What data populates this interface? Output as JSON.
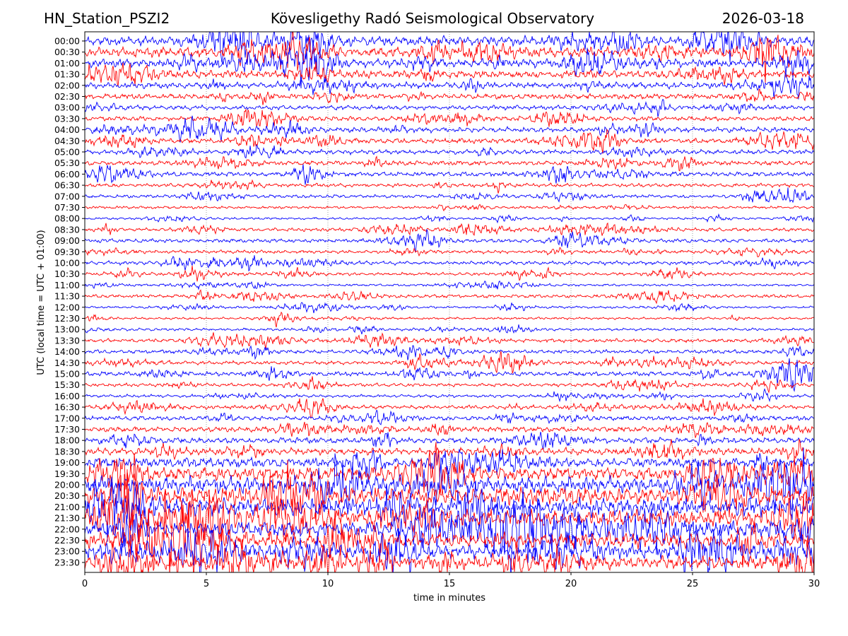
{
  "header": {
    "station": "HN_Station_PSZI2",
    "observatory": "Kövesligethy Radó Seismological Observatory",
    "date": "2026-03-18"
  },
  "chart_data": {
    "type": "line",
    "xlabel": "time in minutes",
    "ylabel": "UTC (local time = UTC + 01:00)",
    "xlim": [
      0,
      30
    ],
    "x_ticks": [
      "0",
      "5",
      "10",
      "15",
      "20",
      "25",
      "30"
    ],
    "grid": "vertical dotted lines at x = 5, 10, 15, 20, 25",
    "trace_colors": [
      "#0000ff",
      "#ff0000"
    ],
    "row_labels": [
      "00:00",
      "00:30",
      "01:00",
      "01:30",
      "02:00",
      "02:30",
      "03:00",
      "03:30",
      "04:00",
      "04:30",
      "05:00",
      "05:30",
      "06:00",
      "06:30",
      "07:00",
      "07:30",
      "08:00",
      "08:30",
      "09:00",
      "09:30",
      "10:00",
      "10:30",
      "11:00",
      "11:30",
      "12:00",
      "12:30",
      "13:00",
      "13:30",
      "14:00",
      "14:30",
      "15:00",
      "15:30",
      "16:00",
      "16:30",
      "17:00",
      "17:30",
      "18:00",
      "18:30",
      "19:00",
      "19:30",
      "20:00",
      "20:30",
      "21:00",
      "21:30",
      "22:00",
      "22:30",
      "23:00",
      "23:30"
    ],
    "relative_amplitude": [
      1.3,
      1.3,
      1.1,
      1.0,
      0.8,
      0.7,
      0.6,
      0.6,
      0.7,
      0.7,
      0.6,
      0.6,
      0.6,
      0.5,
      0.45,
      0.35,
      0.3,
      0.45,
      0.5,
      0.45,
      0.5,
      0.4,
      0.3,
      0.45,
      0.3,
      0.3,
      0.35,
      0.5,
      0.5,
      0.5,
      0.6,
      0.45,
      0.4,
      0.5,
      0.6,
      0.7,
      0.8,
      0.9,
      1.3,
      1.8,
      2.2,
      2.4,
      2.4,
      2.3,
      2.2,
      2.1,
      1.9,
      1.8
    ]
  }
}
